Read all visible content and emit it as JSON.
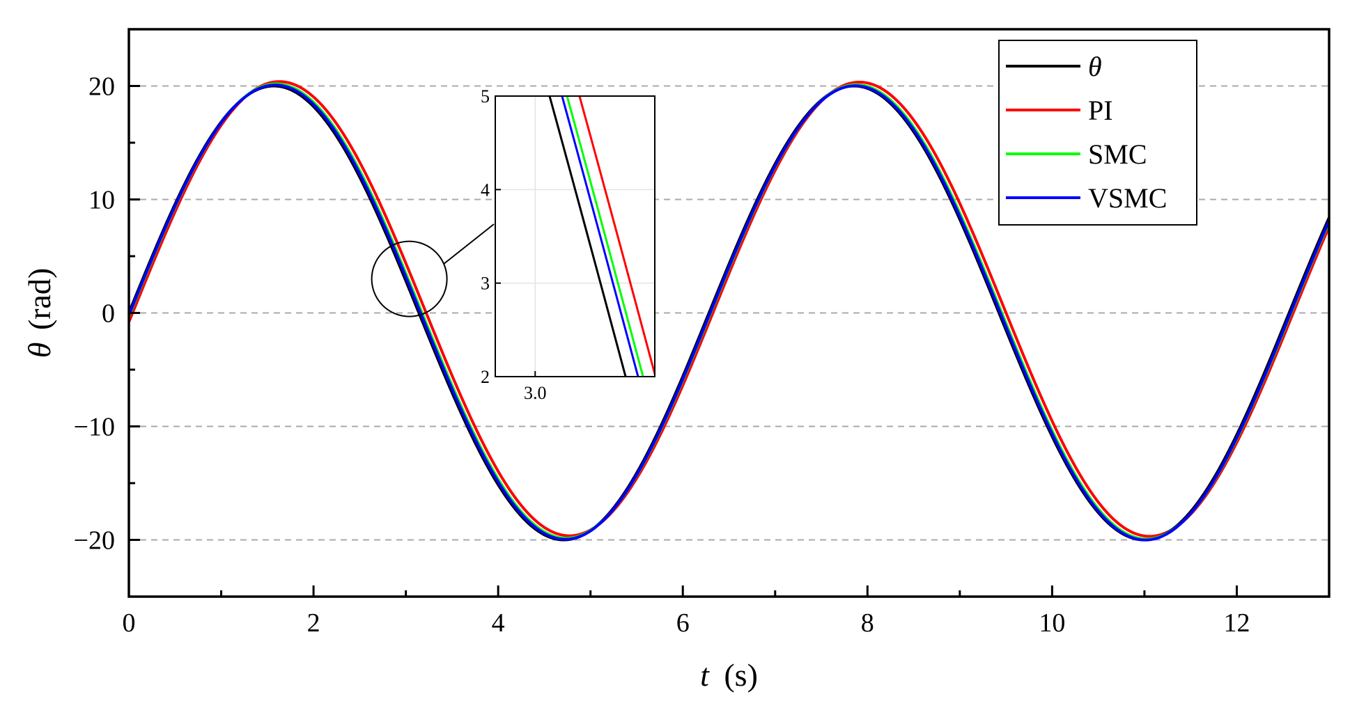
{
  "chart_data": {
    "type": "line",
    "xlabel_var": "t",
    "xlabel_unit": "(s)",
    "ylabel_var": "θ",
    "ylabel_unit": "(rad)",
    "xlim": [
      0,
      13
    ],
    "ylim": [
      -25,
      25
    ],
    "xticks": [
      0,
      2,
      4,
      6,
      8,
      10,
      12
    ],
    "yticks": [
      -20,
      -10,
      0,
      10,
      20
    ],
    "xtick_labels": [
      "0",
      "2",
      "4",
      "6",
      "8",
      "10",
      "12"
    ],
    "ytick_labels": [
      "−20",
      "−10",
      "0",
      "10",
      "20"
    ],
    "grid": "horizontal dashed",
    "legend_position": "top-right",
    "series": [
      {
        "name": "θ",
        "color": "#000000",
        "amplitude": 20,
        "lag": 0.0,
        "x_start": 0,
        "x_end": 13,
        "y_start": 0,
        "y_end": 8.4
      },
      {
        "name": "PI",
        "color": "#ff0000",
        "amplitude": 20,
        "lag": 0.06,
        "x_start": 0,
        "x_end": 13,
        "y_start": -0.8,
        "y_end": 7.6
      },
      {
        "name": "SMC",
        "color": "#00ff00",
        "amplitude": 20,
        "lag": 0.025,
        "x_start": 0,
        "x_end": 13,
        "y_start": -0.3,
        "y_end": 8.0
      },
      {
        "name": "VSMC",
        "color": "#0000ff",
        "amplitude": 20,
        "lag": 0.015,
        "x_start": 0,
        "x_end": 13,
        "y_start": -0.2,
        "y_end": 8.1
      }
    ],
    "inset": {
      "xlim": [
        2.92,
        3.24
      ],
      "ylim": [
        2,
        5
      ],
      "xticks": [
        3.0
      ],
      "xtick_labels": [
        "3.0"
      ],
      "yticks": [
        2,
        3,
        4,
        5
      ],
      "ytick_labels": [
        "2",
        "3",
        "4",
        "5"
      ],
      "zoom_center": [
        3.0,
        3.0
      ]
    }
  }
}
